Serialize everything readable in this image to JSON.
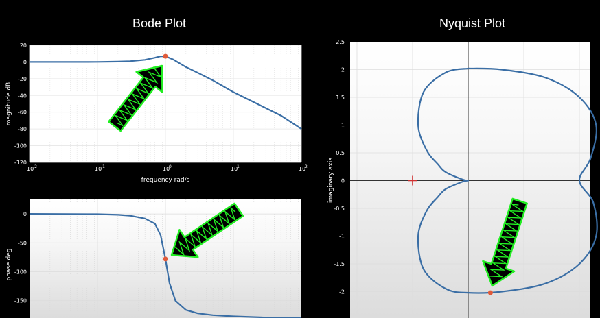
{
  "titles": {
    "bode": "Bode Plot",
    "nyquist": "Nyquist Plot"
  },
  "colors": {
    "curve": "#3a6ea5",
    "marker": "#e05a3a",
    "arrow_fill": "#000000",
    "arrow_outline": "#22ee22",
    "cross": "#d03030"
  },
  "chart_data": [
    {
      "type": "line",
      "title": "",
      "xlabel": "frequency rad/s",
      "ylabel": "magnitude dB",
      "xscale": "log",
      "xlim": [
        0.01,
        100
      ],
      "ylim": [
        -120,
        20
      ],
      "xtick_labels": [
        "10^-2",
        "10^-1",
        "10^0",
        "10^1",
        "10^2"
      ],
      "ytick_labels": [
        "20",
        "0",
        "-20",
        "-40",
        "-60",
        "-80",
        "-100",
        "-120"
      ],
      "grid": true,
      "series": [
        {
          "x": [
            0.01,
            0.05,
            0.1,
            0.2,
            0.3,
            0.5,
            0.7,
            0.85,
            1.0,
            1.3,
            2,
            3,
            5,
            10,
            20,
            50,
            100
          ],
          "y": [
            0,
            0,
            0.1,
            0.4,
            0.9,
            2.6,
            5.1,
            6.8,
            6.8,
            3.0,
            -6,
            -13,
            -22,
            -36,
            -48,
            -64,
            -80
          ]
        }
      ],
      "markers": [
        {
          "x": 1.0,
          "y": 6.8
        }
      ]
    },
    {
      "type": "line",
      "title": "",
      "xlabel": "",
      "ylabel": "phase deg",
      "xscale": "log",
      "xlim": [
        0.01,
        100
      ],
      "ylim": [
        -180,
        25
      ],
      "ytick_labels": [
        "0",
        "-50",
        "-100",
        "-150"
      ],
      "grid": true,
      "series": [
        {
          "x": [
            0.01,
            0.1,
            0.2,
            0.3,
            0.5,
            0.7,
            0.85,
            1.0,
            1.15,
            1.4,
            2,
            3,
            5,
            10,
            30,
            100
          ],
          "y": [
            0,
            -0.5,
            -1.5,
            -3,
            -8,
            -17,
            -37,
            -78,
            -120,
            -150,
            -166,
            -172,
            -175,
            -177,
            -179,
            -180
          ]
        }
      ],
      "markers": [
        {
          "x": 1.0,
          "y": -78
        }
      ]
    },
    {
      "type": "line",
      "title": "",
      "xlabel": "",
      "ylabel": "imaginary axis",
      "xlim": [
        -1.65,
        2.15
      ],
      "ylim": [
        -2.5,
        2.5
      ],
      "ytick_labels": [
        "2.5",
        "2",
        "1.5",
        "1",
        "0.5",
        "0",
        "-0.5",
        "-1",
        "-1.5",
        "-2"
      ],
      "grid": true,
      "series": [
        {
          "curve": "closed cardioid-like loop through origin, mirrored about the real axis",
          "x": [
            0,
            0.6,
            1.4,
            2.0,
            2.3,
            2.2,
            2.0,
            2.25,
            2.3,
            2.0,
            1.4,
            0.6,
            0,
            -0.4,
            -0.8,
            -0.9,
            -0.75,
            -0.55,
            -0.4,
            -0.1,
            0,
            -0.1,
            -0.4,
            -0.55,
            -0.75,
            -0.9,
            -0.8,
            -0.4,
            0
          ],
          "y": [
            2.02,
            2.0,
            1.85,
            1.5,
            1.0,
            0.4,
            0.0,
            -0.4,
            -1.0,
            -1.5,
            -1.85,
            -2.0,
            -2.02,
            -1.95,
            -1.6,
            -1.0,
            -0.55,
            -0.3,
            -0.15,
            -0.02,
            0,
            0.02,
            0.15,
            0.3,
            0.55,
            1.0,
            1.6,
            1.95,
            2.02
          ]
        }
      ],
      "annotations": [
        {
          "kind": "cross",
          "x": -1.0,
          "y": 0
        },
        {
          "kind": "marker",
          "x": 0.4,
          "y": -2.02
        }
      ]
    }
  ]
}
